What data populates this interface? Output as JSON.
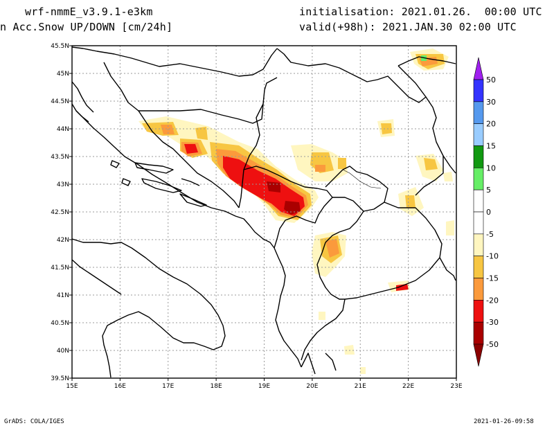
{
  "header": {
    "model": "wrf-nmmE_v3.9.1-e3km",
    "variable": "n Acc.Snow UP/DOWN [cm/24h]",
    "initialisation": "initialisation: 2021.01.26.  00:00 UTC",
    "valid": "valid(+98h): 2021.JAN.30 02:00 UTC"
  },
  "footer": {
    "left": "GrADS: COLA/IGES",
    "right": "2021-01-26-09:58"
  },
  "map": {
    "lon_labels": [
      "15E",
      "16E",
      "17E",
      "18E",
      "19E",
      "20E",
      "21E",
      "22E",
      "23E"
    ],
    "lat_labels": [
      "45.5N",
      "45N",
      "44.5N",
      "44N",
      "43.5N",
      "43N",
      "42.5N",
      "42N",
      "41.5N",
      "41N",
      "40.5N",
      "40N",
      "39.5N"
    ]
  },
  "legend": {
    "labels": [
      "50",
      "30",
      "20",
      "15",
      "10",
      "5",
      "0",
      "-5",
      "-10",
      "-15",
      "-20",
      "-30",
      "-50"
    ],
    "top_color": "#a020f0",
    "bottom_color": "#8b0000",
    "colors": [
      "#3333ff",
      "#5599ee",
      "#99ccff",
      "#119911",
      "#66ee66",
      "#ffffff",
      "#ffffff",
      "#fff6c0",
      "#f7c642",
      "#fb9a3c",
      "#ee1010",
      "#aa0000"
    ]
  }
}
